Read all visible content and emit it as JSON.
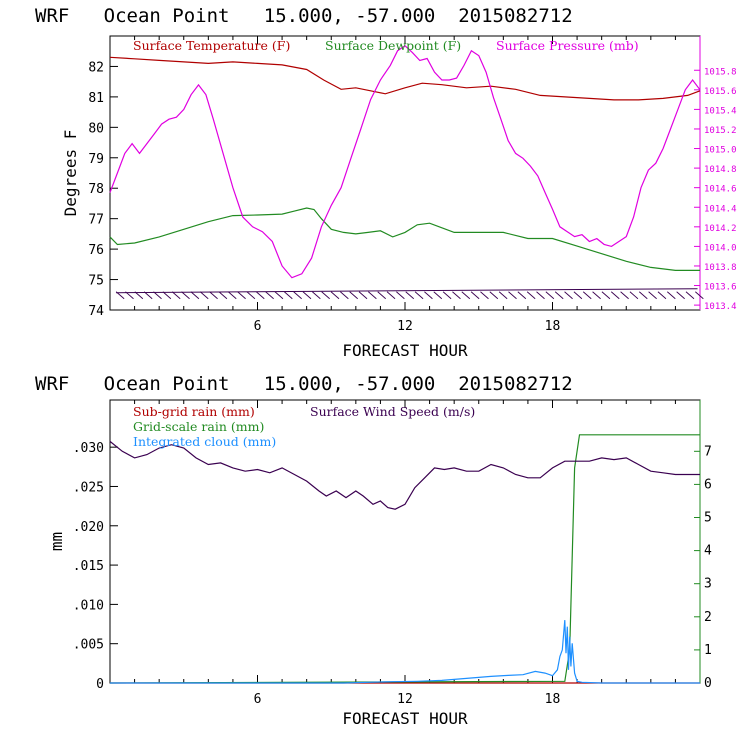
{
  "colors": {
    "temperature": "#b00000",
    "dewpoint": "#228b22",
    "pressure": "#e000e0",
    "wind": "#3a0050",
    "subgrid": "#b00000",
    "gridscale": "#228b22",
    "cloud": "#1e90ff",
    "axis": "#000000"
  },
  "chart_data": [
    {
      "type": "line",
      "title": "WRF   Ocean Point   15.000, -57.000  2015082712",
      "xlabel": "FORECAST HOUR",
      "ylabel": "Degrees F",
      "xlim": [
        0,
        24
      ],
      "ylim": [
        74,
        83
      ],
      "x_ticks": [
        6,
        12,
        18
      ],
      "y_ticks": [
        74,
        75,
        76,
        77,
        78,
        79,
        80,
        81,
        82
      ],
      "y2_label": "Surface Pressure (mb)",
      "y2lim": [
        1013.35,
        1016.15
      ],
      "y2_ticks": [
        "1013.4",
        "1013.6",
        "1013.8",
        "1014.0",
        "1014.2",
        "1014.4",
        "1014.6",
        "1014.8",
        "1015.0",
        "1015.2",
        "1015.4",
        "1015.6",
        "1015.8"
      ],
      "wind_barbs": "surface wind barbs along y = 74.6",
      "series": [
        {
          "name": "Surface Temperature (F)",
          "axis": "left",
          "x": [
            0,
            1,
            2,
            3,
            4,
            5,
            6,
            7,
            8,
            8.7,
            9.4,
            10,
            10.6,
            11.2,
            12,
            12.7,
            13.5,
            14.5,
            15.5,
            16.5,
            17.5,
            18.5,
            19.5,
            20.5,
            21.5,
            22.5,
            23.5,
            24
          ],
          "y": [
            82.3,
            82.25,
            82.2,
            82.15,
            82.1,
            82.15,
            82.1,
            82.05,
            81.9,
            81.55,
            81.25,
            81.3,
            81.2,
            81.1,
            81.3,
            81.45,
            81.4,
            81.3,
            81.35,
            81.25,
            81.05,
            81.0,
            80.95,
            80.9,
            80.9,
            80.95,
            81.05,
            81.2
          ]
        },
        {
          "name": "Surface Dewpoint (F)",
          "axis": "left",
          "x": [
            0,
            0.3,
            1,
            2,
            3,
            4,
            5,
            6,
            7,
            7.5,
            8,
            8.3,
            8.6,
            9,
            9.5,
            10,
            10.5,
            11,
            11.5,
            12,
            12.5,
            13,
            13.5,
            14,
            14.5,
            15,
            16,
            17,
            18,
            19,
            20,
            21,
            22,
            23,
            24
          ],
          "y": [
            76.4,
            76.15,
            76.2,
            76.4,
            76.65,
            76.9,
            77.1,
            77.12,
            77.15,
            77.25,
            77.35,
            77.3,
            77.0,
            76.65,
            76.55,
            76.5,
            76.55,
            76.6,
            76.4,
            76.55,
            76.8,
            76.85,
            76.7,
            76.55,
            76.55,
            76.55,
            76.55,
            76.35,
            76.35,
            76.1,
            75.85,
            75.6,
            75.4,
            75.3,
            75.3
          ],
          "x_note": "estimated from plot"
        },
        {
          "name": "Surface Pressure (mb)",
          "axis": "right",
          "x": [
            0,
            0.3,
            0.6,
            0.9,
            1.2,
            1.5,
            1.8,
            2.1,
            2.4,
            2.7,
            3.0,
            3.3,
            3.6,
            3.9,
            4.2,
            4.6,
            5.0,
            5.4,
            5.8,
            6.2,
            6.6,
            7.0,
            7.4,
            7.8,
            8.2,
            8.6,
            9.0,
            9.4,
            9.8,
            10.2,
            10.6,
            11.0,
            11.4,
            11.7,
            12.0,
            12.3,
            12.6,
            12.9,
            13.2,
            13.5,
            13.8,
            14.1,
            14.4,
            14.7,
            15.0,
            15.3,
            15.6,
            15.9,
            16.2,
            16.5,
            16.8,
            17.1,
            17.4,
            17.7,
            18.0,
            18.3,
            18.6,
            18.9,
            19.2,
            19.5,
            19.8,
            20.1,
            20.4,
            20.7,
            21.0,
            21.3,
            21.6,
            21.9,
            22.2,
            22.5,
            22.8,
            23.1,
            23.4,
            23.7,
            24.0
          ],
          "y": [
            1014.55,
            1014.75,
            1014.95,
            1015.05,
            1014.95,
            1015.05,
            1015.15,
            1015.25,
            1015.3,
            1015.32,
            1015.4,
            1015.55,
            1015.65,
            1015.55,
            1015.3,
            1014.95,
            1014.6,
            1014.3,
            1014.2,
            1014.15,
            1014.05,
            1013.8,
            1013.68,
            1013.72,
            1013.88,
            1014.2,
            1014.42,
            1014.6,
            1014.9,
            1015.2,
            1015.5,
            1015.7,
            1015.85,
            1016.0,
            1016.05,
            1015.98,
            1015.9,
            1015.92,
            1015.78,
            1015.7,
            1015.7,
            1015.72,
            1015.85,
            1016.0,
            1015.95,
            1015.78,
            1015.52,
            1015.3,
            1015.08,
            1014.95,
            1014.9,
            1014.82,
            1014.72,
            1014.55,
            1014.38,
            1014.2,
            1014.15,
            1014.1,
            1014.12,
            1014.05,
            1014.08,
            1014.02,
            1014.0,
            1014.05,
            1014.1,
            1014.3,
            1014.6,
            1014.78,
            1014.85,
            1015.0,
            1015.2,
            1015.4,
            1015.6,
            1015.7,
            1015.6
          ]
        }
      ]
    },
    {
      "type": "line",
      "title": "WRF   Ocean Point   15.000, -57.000  2015082712",
      "xlabel": "FORECAST HOUR",
      "ylabel": "mm",
      "xlim": [
        0,
        24
      ],
      "ylim": [
        0,
        0.036
      ],
      "x_ticks": [
        6,
        12,
        18
      ],
      "y_tick_labels": [
        "0",
        ".005",
        ".010",
        ".015",
        ".020",
        ".025",
        ".030"
      ],
      "y_tick_values": [
        0,
        0.005,
        0.01,
        0.015,
        0.02,
        0.025,
        0.03
      ],
      "y2_label": "Surface Wind Speed (m/s)",
      "y2lim": [
        0,
        8.55
      ],
      "y2_ticks": [
        "0",
        "1",
        "2",
        "3",
        "4",
        "5",
        "6",
        "7"
      ],
      "series": [
        {
          "name": "Sub-grid rain (mm)",
          "axis": "left",
          "x": [
            0,
            24
          ],
          "y": [
            0,
            0
          ]
        },
        {
          "name": "Grid-scale rain (mm)",
          "axis": "right",
          "x": [
            0,
            18.5,
            18.7,
            18.9,
            19.1,
            24
          ],
          "y": [
            0,
            0.05,
            1.0,
            6.5,
            7.5,
            7.5
          ]
        },
        {
          "name": "Integrated cloud (mm)",
          "axis": "right",
          "x": [
            0,
            9.5,
            10.5,
            11.5,
            12.5,
            13.5,
            14.5,
            15.5,
            16.2,
            16.8,
            17.3,
            17.7,
            18.0,
            18.2,
            18.3,
            18.4,
            18.5,
            18.55,
            18.6,
            18.65,
            18.7,
            18.75,
            18.8,
            18.9,
            19.0,
            19.2,
            20.0,
            24
          ],
          "y": [
            0,
            0,
            0.02,
            0.04,
            0.05,
            0.08,
            0.14,
            0.2,
            0.23,
            0.25,
            0.35,
            0.3,
            0.22,
            0.4,
            0.8,
            1.0,
            1.9,
            0.9,
            1.7,
            0.4,
            1.4,
            0.5,
            1.2,
            0.3,
            0.05,
            0.02,
            0,
            0
          ]
        },
        {
          "name": "Surface Wind Speed (m/s)",
          "axis": "right",
          "x": [
            0,
            0.5,
            1.0,
            1.5,
            2.0,
            2.5,
            3.0,
            3.5,
            4.0,
            4.5,
            5.0,
            5.5,
            6.0,
            6.5,
            7.0,
            7.5,
            8.0,
            8.5,
            8.8,
            9.2,
            9.6,
            10.0,
            10.3,
            10.7,
            11.0,
            11.3,
            11.6,
            12.0,
            12.4,
            12.8,
            13.2,
            13.6,
            14.0,
            14.5,
            15.0,
            15.5,
            16.0,
            16.5,
            17.0,
            17.5,
            18.0,
            18.5,
            19.0,
            19.5,
            20.0,
            20.5,
            21.0,
            21.5,
            22.0,
            22.5,
            23.0,
            23.5,
            24.0
          ],
          "y": [
            7.3,
            7.0,
            6.8,
            6.9,
            7.1,
            7.2,
            7.1,
            6.8,
            6.6,
            6.65,
            6.5,
            6.4,
            6.45,
            6.35,
            6.5,
            6.3,
            6.1,
            5.8,
            5.65,
            5.8,
            5.6,
            5.8,
            5.65,
            5.4,
            5.5,
            5.3,
            5.25,
            5.4,
            5.9,
            6.2,
            6.5,
            6.45,
            6.5,
            6.4,
            6.4,
            6.6,
            6.5,
            6.3,
            6.2,
            6.2,
            6.5,
            6.7,
            6.7,
            6.7,
            6.8,
            6.75,
            6.8,
            6.6,
            6.4,
            6.35,
            6.3,
            6.3,
            6.3
          ]
        }
      ]
    }
  ]
}
